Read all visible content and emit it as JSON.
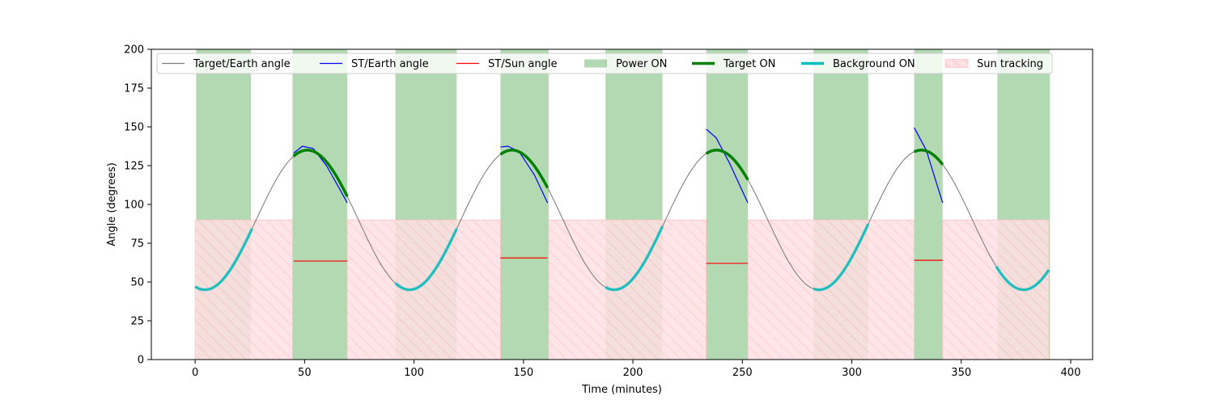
{
  "chart_data": {
    "type": "line",
    "title": "",
    "xlabel": "Time (minutes)",
    "ylabel": "Angle (degrees)",
    "xlim": [
      -20,
      410
    ],
    "ylim": [
      0,
      200
    ],
    "x_ticks": [
      0,
      50,
      100,
      150,
      200,
      250,
      300,
      350,
      400
    ],
    "y_ticks": [
      0,
      25,
      50,
      75,
      100,
      125,
      150,
      175,
      200
    ],
    "grid": false,
    "legend_position": "top",
    "legend": [
      {
        "key": "target_earth",
        "label": "Target/Earth angle",
        "kind": "line",
        "color": "#808080"
      },
      {
        "key": "st_earth",
        "label": "ST/Earth angle",
        "kind": "line",
        "color": "#0000ff"
      },
      {
        "key": "st_sun",
        "label": "ST/Sun angle",
        "kind": "line",
        "color": "#ff0000"
      },
      {
        "key": "power_on",
        "label": "Power ON",
        "kind": "patch",
        "color": "#008000"
      },
      {
        "key": "target_on",
        "label": "Target ON",
        "kind": "thick-line",
        "color": "#008000"
      },
      {
        "key": "background_on",
        "label": "Background ON",
        "kind": "thick-line",
        "color": "#00bfbf"
      },
      {
        "key": "sun_tracking",
        "label": "Sun tracking",
        "kind": "hatch",
        "color": "#ffc0c5"
      }
    ],
    "target_earth_curve": {
      "period": 93.5,
      "mid": 90,
      "amplitude": 45,
      "phase_min": 4.5,
      "t_start": 0,
      "t_end": 390
    },
    "power_on_intervals": [
      [
        0.5,
        25.5
      ],
      [
        44.5,
        69.5
      ],
      [
        91.5,
        119.5
      ],
      [
        139.5,
        161.5
      ],
      [
        187.5,
        213.5
      ],
      [
        233.5,
        252.5
      ],
      [
        282.5,
        307.5
      ],
      [
        328.5,
        341.5
      ],
      [
        366.5,
        390.5
      ]
    ],
    "sun_tracking_intervals": [
      [
        0,
        44.5
      ],
      [
        69.5,
        139.5
      ],
      [
        161.5,
        233.5
      ],
      [
        252.5,
        328.5
      ],
      [
        341.5,
        390
      ]
    ],
    "sun_tracking_height": 90,
    "target_on_intervals": [
      [
        45,
        69.5
      ],
      [
        139.5,
        161
      ],
      [
        233.5,
        252.5
      ],
      [
        328.5,
        341.5
      ]
    ],
    "background_on_intervals": [
      [
        0,
        26
      ],
      [
        91.5,
        119.5
      ],
      [
        187.5,
        213.5
      ],
      [
        282.5,
        307.5
      ],
      [
        366,
        390
      ]
    ],
    "st_earth_segments": [
      {
        "points": [
          [
            45,
            133
          ],
          [
            49,
            137.5
          ],
          [
            54,
            136
          ],
          [
            60,
            125
          ],
          [
            66,
            110
          ],
          [
            69.5,
            101
          ]
        ]
      },
      {
        "points": [
          [
            139.5,
            137
          ],
          [
            143,
            137.5
          ],
          [
            148,
            134
          ],
          [
            155,
            119
          ],
          [
            161,
            101
          ]
        ]
      },
      {
        "points": [
          [
            233.5,
            148.5
          ],
          [
            238,
            143
          ],
          [
            244,
            127
          ],
          [
            252.5,
            101
          ]
        ]
      },
      {
        "points": [
          [
            328.5,
            149.5
          ],
          [
            334,
            135
          ],
          [
            341.5,
            101
          ]
        ]
      }
    ],
    "st_sun_segments": [
      {
        "x": [
          45,
          69.5
        ],
        "y": 63.5
      },
      {
        "x": [
          139.5,
          161
        ],
        "y": 65.5
      },
      {
        "x": [
          233.5,
          252.5
        ],
        "y": 62
      },
      {
        "x": [
          328.5,
          341.5
        ],
        "y": 64
      }
    ]
  }
}
